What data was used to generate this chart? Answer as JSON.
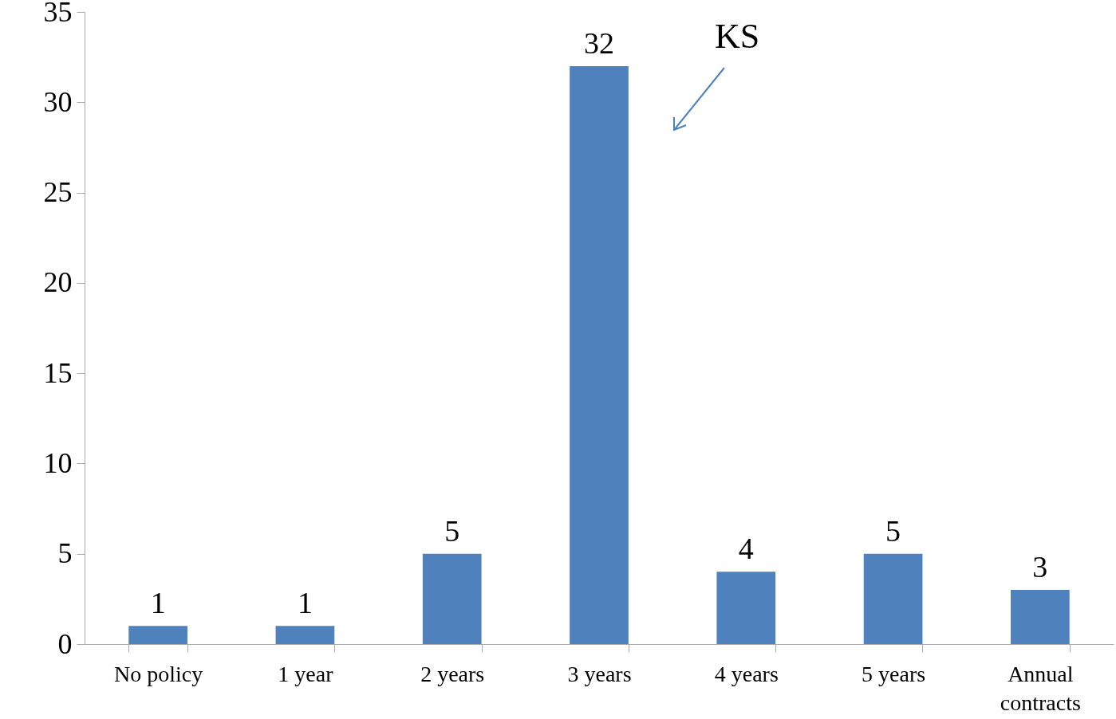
{
  "chart_data": {
    "type": "bar",
    "categories": [
      "No policy",
      "1 year",
      "2 years",
      "3 years",
      "4 years",
      "5 years",
      "Annual contracts"
    ],
    "values": [
      1,
      1,
      5,
      32,
      4,
      5,
      3
    ],
    "color": "#4f81bd",
    "ylim": [
      0,
      35
    ],
    "yticks": [
      0,
      5,
      10,
      15,
      20,
      25,
      30,
      35
    ],
    "grid": false,
    "data_labels": true,
    "annotations": [
      "KS"
    ]
  }
}
